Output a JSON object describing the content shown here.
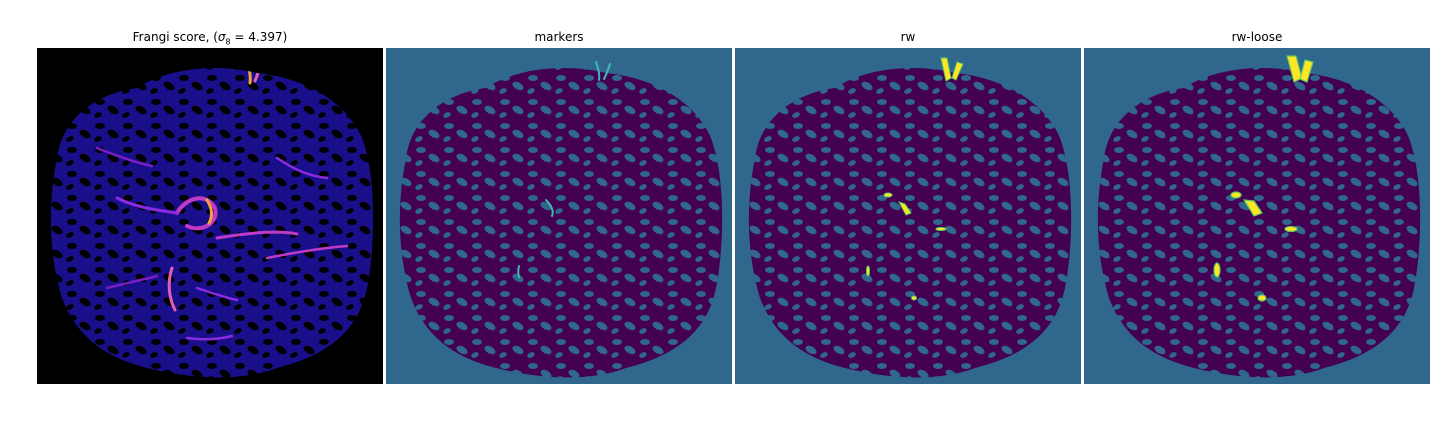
{
  "panels": [
    {
      "title_prefix": "Frangi score, (",
      "title_sigma": "σ",
      "title_sub": "8",
      "title_suffix": " = 4.397)",
      "colormap": "magma"
    },
    {
      "title": "markers",
      "colormap": "viridis"
    },
    {
      "title": "rw",
      "colormap": "viridis"
    },
    {
      "title": "rw-loose",
      "colormap": "viridis"
    }
  ],
  "colors": {
    "frangi_background": "#000000",
    "frangi_tissue": "#1a0f8a",
    "frangi_vessel_mid": "#c03ac8",
    "frangi_vessel_high": "#f5a03c",
    "seg_background": "#30678d",
    "seg_tissue": "#440154",
    "seg_marker": "#3fb9b0",
    "seg_vessel": "#fde725",
    "seg_vessel_edge": "#5ec962"
  }
}
